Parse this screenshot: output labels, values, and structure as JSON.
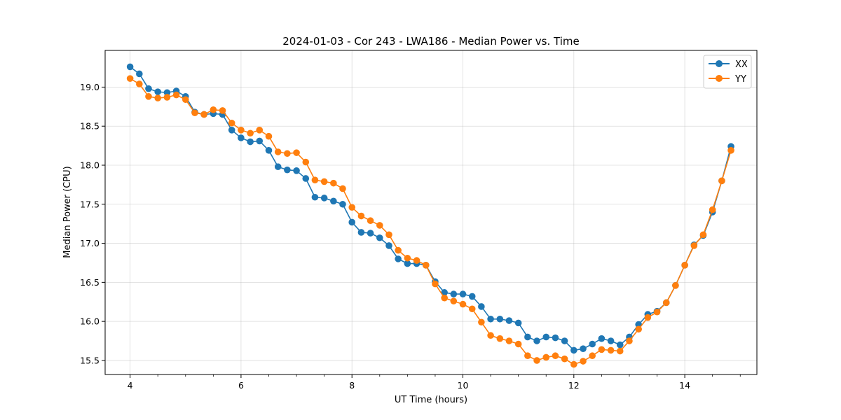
{
  "chart_data": {
    "type": "line",
    "title": "2024-01-03 - Cor 243 - LWA186 - Median Power vs. Time",
    "xlabel": "UT Time (hours)",
    "ylabel": "Median Power (CPU)",
    "xlim": [
      3.55,
      15.3
    ],
    "ylim": [
      15.32,
      19.47
    ],
    "xticks": [
      4,
      6,
      8,
      10,
      12,
      14
    ],
    "xtick_labels": [
      "4",
      "6",
      "8",
      "10",
      "12",
      "14"
    ],
    "yticks": [
      15.5,
      16.0,
      16.5,
      17.0,
      17.5,
      18.0,
      18.5,
      19.0
    ],
    "ytick_labels": [
      "15.5",
      "16.0",
      "16.5",
      "17.0",
      "17.5",
      "18.0",
      "18.5",
      "19.0"
    ],
    "grid": true,
    "legend_position": "top-right",
    "x": [
      4.0,
      4.167,
      4.333,
      4.5,
      4.667,
      4.833,
      5.0,
      5.167,
      5.333,
      5.5,
      5.667,
      5.833,
      6.0,
      6.167,
      6.333,
      6.5,
      6.667,
      6.833,
      7.0,
      7.167,
      7.333,
      7.5,
      7.667,
      7.833,
      8.0,
      8.167,
      8.333,
      8.5,
      8.667,
      8.833,
      9.0,
      9.167,
      9.333,
      9.5,
      9.667,
      9.833,
      10.0,
      10.167,
      10.333,
      10.5,
      10.667,
      10.833,
      11.0,
      11.167,
      11.333,
      11.5,
      11.667,
      11.833,
      12.0,
      12.167,
      12.333,
      12.5,
      12.667,
      12.833,
      13.0,
      13.167,
      13.333,
      13.5,
      13.667,
      13.833,
      14.0,
      14.167,
      14.333,
      14.5,
      14.667,
      14.833
    ],
    "series": [
      {
        "name": "XX",
        "color": "#1f77b4",
        "values": [
          19.26,
          19.17,
          18.98,
          18.94,
          18.93,
          18.95,
          18.88,
          18.68,
          18.65,
          18.66,
          18.65,
          18.45,
          18.35,
          18.3,
          18.31,
          18.19,
          17.98,
          17.94,
          17.93,
          17.83,
          17.59,
          17.58,
          17.54,
          17.5,
          17.27,
          17.14,
          17.13,
          17.07,
          16.97,
          16.8,
          16.74,
          16.74,
          16.72,
          16.51,
          16.37,
          16.35,
          16.35,
          16.32,
          16.19,
          16.03,
          16.03,
          16.01,
          15.98,
          15.8,
          15.75,
          15.8,
          15.79,
          15.75,
          15.63,
          15.65,
          15.71,
          15.78,
          15.75,
          15.7,
          15.8,
          15.96,
          16.09,
          16.13,
          16.24,
          16.46,
          16.72,
          16.98,
          17.1,
          17.4,
          17.8,
          18.24
        ]
      },
      {
        "name": "YY",
        "color": "#ff7f0e",
        "values": [
          19.11,
          19.04,
          18.88,
          18.86,
          18.87,
          18.9,
          18.84,
          18.67,
          18.65,
          18.71,
          18.7,
          18.54,
          18.45,
          18.41,
          18.45,
          18.37,
          18.17,
          18.15,
          18.16,
          18.04,
          17.81,
          17.79,
          17.77,
          17.7,
          17.46,
          17.35,
          17.29,
          17.23,
          17.11,
          16.91,
          16.81,
          16.78,
          16.72,
          16.48,
          16.3,
          16.26,
          16.22,
          16.16,
          15.99,
          15.82,
          15.78,
          15.75,
          15.71,
          15.56,
          15.5,
          15.54,
          15.56,
          15.52,
          15.45,
          15.49,
          15.56,
          15.64,
          15.63,
          15.62,
          15.75,
          15.9,
          16.05,
          16.12,
          16.24,
          16.46,
          16.72,
          16.97,
          17.11,
          17.43,
          17.8,
          18.19
        ]
      }
    ]
  }
}
